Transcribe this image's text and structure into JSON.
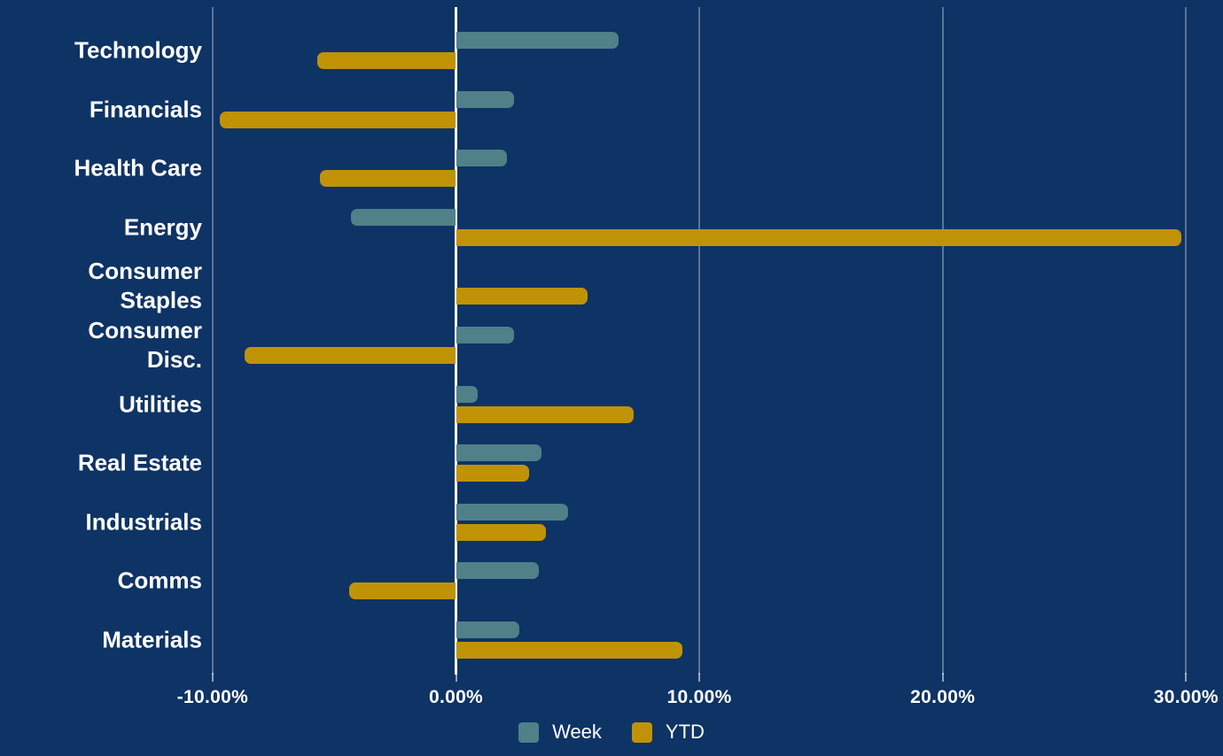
{
  "chart_data": {
    "type": "bar",
    "orientation": "horizontal",
    "title": "",
    "categories": [
      "Technology",
      "Financials",
      "Health Care",
      "Energy",
      "Consumer Staples",
      "Consumer Disc.",
      "Utilities",
      "Real Estate",
      "Industrials",
      "Comms",
      "Materials"
    ],
    "series": [
      {
        "name": "Week",
        "color": "#508088",
        "values": [
          6.7,
          2.4,
          2.1,
          -4.3,
          0,
          2.4,
          0.9,
          3.5,
          4.6,
          3.4,
          2.6
        ]
      },
      {
        "name": "YTD",
        "color": "#c09307",
        "values": [
          -5.7,
          -9.7,
          -5.6,
          29.8,
          5.4,
          -8.7,
          7.3,
          3.0,
          3.7,
          -4.4,
          9.3
        ]
      }
    ],
    "x_ticks": [
      {
        "label": "-10.00%",
        "value": -10
      },
      {
        "label": "0.00%",
        "value": 0
      },
      {
        "label": "10.00%",
        "value": 10
      },
      {
        "label": "20.00%",
        "value": 20
      },
      {
        "label": "30.00%",
        "value": 30
      }
    ],
    "xlim": [
      -11.5,
      31.5
    ],
    "grid": "vertical-only",
    "legend_position": "bottom-center",
    "background_color": "#0e3365",
    "text_color": "#ffffff",
    "zero_line_color": "#ffffff",
    "gridline_color": "rgba(255,255,255,0.32)"
  }
}
